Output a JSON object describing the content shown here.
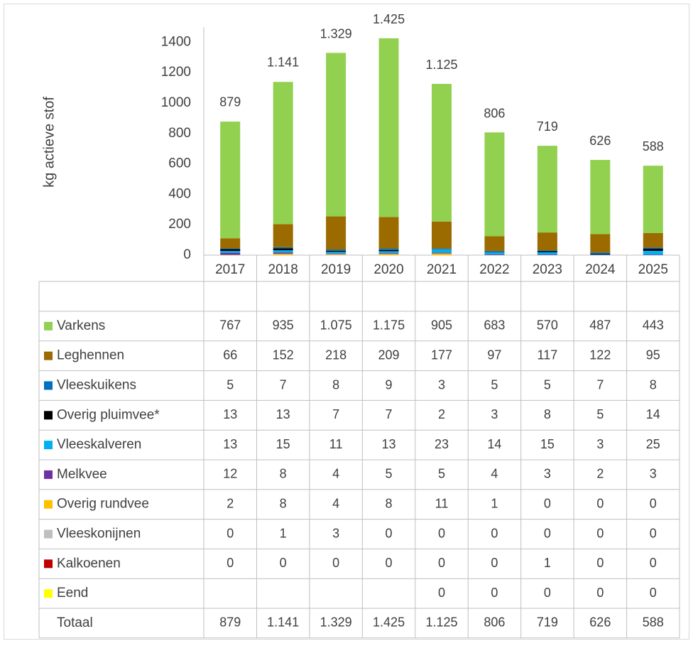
{
  "chart_data": {
    "type": "bar",
    "stacked": true,
    "ylabel": "kg actieve stof",
    "categories": [
      "2017",
      "2018",
      "2019",
      "2020",
      "2021",
      "2022",
      "2023",
      "2024",
      "2025"
    ],
    "ylim": [
      0,
      1500
    ],
    "yticks": [
      0,
      200,
      400,
      600,
      800,
      1000,
      1200,
      1400
    ],
    "grid": false,
    "series": [
      {
        "name": "Varkens",
        "color": "#92d050",
        "values": [
          767,
          935,
          1075,
          1175,
          905,
          683,
          570,
          487,
          443
        ],
        "value_labels": [
          "767",
          "935",
          "1.075",
          "1.175",
          "905",
          "683",
          "570",
          "487",
          "443"
        ]
      },
      {
        "name": "Leghennen",
        "color": "#9c6b00",
        "values": [
          66,
          152,
          218,
          209,
          177,
          97,
          117,
          122,
          95
        ]
      },
      {
        "name": "Vleeskuikens",
        "color": "#0070c0",
        "values": [
          5,
          7,
          8,
          9,
          3,
          5,
          5,
          7,
          8
        ]
      },
      {
        "name": "Overig pluimvee*",
        "color": "#000000",
        "values": [
          13,
          13,
          7,
          7,
          2,
          3,
          8,
          5,
          14
        ]
      },
      {
        "name": "Vleeskalveren",
        "color": "#00b0f0",
        "values": [
          13,
          15,
          11,
          13,
          23,
          14,
          15,
          3,
          25
        ]
      },
      {
        "name": "Melkvee",
        "color": "#7030a0",
        "values": [
          12,
          8,
          4,
          5,
          5,
          4,
          3,
          2,
          3
        ]
      },
      {
        "name": "Overig rundvee",
        "color": "#ffc000",
        "values": [
          2,
          8,
          4,
          8,
          11,
          1,
          0,
          0,
          0
        ]
      },
      {
        "name": "Vleeskonijnen",
        "color": "#bfbfbf",
        "values": [
          0,
          1,
          3,
          0,
          0,
          0,
          0,
          0,
          0
        ]
      },
      {
        "name": "Kalkoenen",
        "color": "#c00000",
        "values": [
          0,
          0,
          0,
          0,
          0,
          0,
          1,
          0,
          0
        ]
      },
      {
        "name": "Eend",
        "color": "#ffff00",
        "values": [
          null,
          null,
          null,
          null,
          0,
          0,
          0,
          0,
          0
        ]
      }
    ],
    "totals": {
      "name": "Totaal",
      "values": [
        879,
        1141,
        1329,
        1425,
        1125,
        806,
        719,
        626,
        588
      ],
      "value_labels": [
        "879",
        "1.141",
        "1.329",
        "1.425",
        "1.125",
        "806",
        "719",
        "626",
        "588"
      ]
    }
  }
}
